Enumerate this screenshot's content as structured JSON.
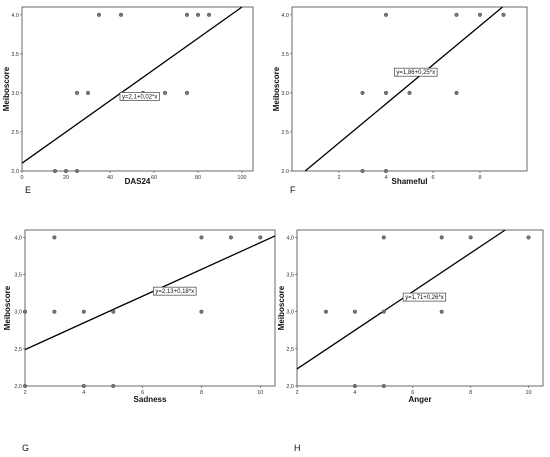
{
  "chart_data": [
    {
      "type": "scatter",
      "panel_label": "E",
      "xlabel": "DAS24",
      "ylabel": "Meiboscore",
      "xlim": [
        0,
        105
      ],
      "ylim": [
        2.0,
        4.1
      ],
      "xticks": [
        "0",
        "20",
        "40",
        "60",
        "80",
        "100"
      ],
      "yticks": [
        "2.0",
        "2.5",
        "3.0",
        "3.5",
        "4.0"
      ],
      "points": [
        [
          15,
          2
        ],
        [
          20,
          2
        ],
        [
          25,
          2
        ],
        [
          25,
          3
        ],
        [
          30,
          3
        ],
        [
          35,
          4
        ],
        [
          45,
          4
        ],
        [
          55,
          3
        ],
        [
          65,
          3
        ],
        [
          75,
          3
        ],
        [
          75,
          4
        ],
        [
          80,
          4
        ],
        [
          85,
          4
        ]
      ],
      "fit": {
        "intercept": 2.1,
        "slope": 0.02,
        "label": "y=2,1+0,02*x"
      }
    },
    {
      "type": "scatter",
      "panel_label": "F",
      "xlabel": "Shameful",
      "ylabel": "Meiboscore",
      "xlim": [
        0,
        10
      ],
      "ylim": [
        2.0,
        4.1
      ],
      "xticks": [
        "2",
        "4",
        "6",
        "8"
      ],
      "yticks": [
        "2.0",
        "2.5",
        "3.0",
        "3.5",
        "4.0"
      ],
      "points": [
        [
          3,
          2
        ],
        [
          4,
          2
        ],
        [
          3,
          3
        ],
        [
          4,
          3
        ],
        [
          5,
          3
        ],
        [
          7,
          3
        ],
        [
          4,
          4
        ],
        [
          7,
          4
        ],
        [
          8,
          4
        ],
        [
          9,
          4
        ]
      ],
      "fit": {
        "intercept": 1.86,
        "slope": 0.25,
        "label": "y=1,86+0,25*x"
      }
    },
    {
      "type": "scatter",
      "panel_label": "G",
      "xlabel": "Sadness",
      "ylabel": "Meiboscore",
      "xlim": [
        2,
        10.5
      ],
      "ylim": [
        2.0,
        4.1
      ],
      "xticks": [
        "2",
        "4",
        "6",
        "8",
        "10"
      ],
      "yticks": [
        "2,0",
        "2,5",
        "3,0",
        "3,5",
        "4,0"
      ],
      "points": [
        [
          2,
          2
        ],
        [
          4,
          2
        ],
        [
          5,
          2
        ],
        [
          2,
          3
        ],
        [
          3,
          3
        ],
        [
          4,
          3
        ],
        [
          5,
          3
        ],
        [
          8,
          3
        ],
        [
          3,
          4
        ],
        [
          8,
          4
        ],
        [
          9,
          4
        ],
        [
          10,
          4
        ]
      ],
      "fit": {
        "intercept": 2.13,
        "slope": 0.18,
        "label": "y=2,13+0,18*x"
      }
    },
    {
      "type": "scatter",
      "panel_label": "H",
      "xlabel": "Anger",
      "ylabel": "Meiboscore",
      "xlim": [
        2,
        10.5
      ],
      "ylim": [
        2.0,
        4.1
      ],
      "xticks": [
        "2",
        "4",
        "6",
        "8",
        "10"
      ],
      "yticks": [
        "2,0",
        "2,5",
        "3,0",
        "3,5",
        "4,0"
      ],
      "points": [
        [
          4,
          2
        ],
        [
          5,
          2
        ],
        [
          3,
          3
        ],
        [
          4,
          3
        ],
        [
          5,
          3
        ],
        [
          7,
          3
        ],
        [
          5,
          4
        ],
        [
          7,
          4
        ],
        [
          8,
          4
        ],
        [
          10,
          4
        ]
      ],
      "fit": {
        "intercept": 1.71,
        "slope": 0.26,
        "label": "y=1,71+0,26*x"
      }
    }
  ]
}
